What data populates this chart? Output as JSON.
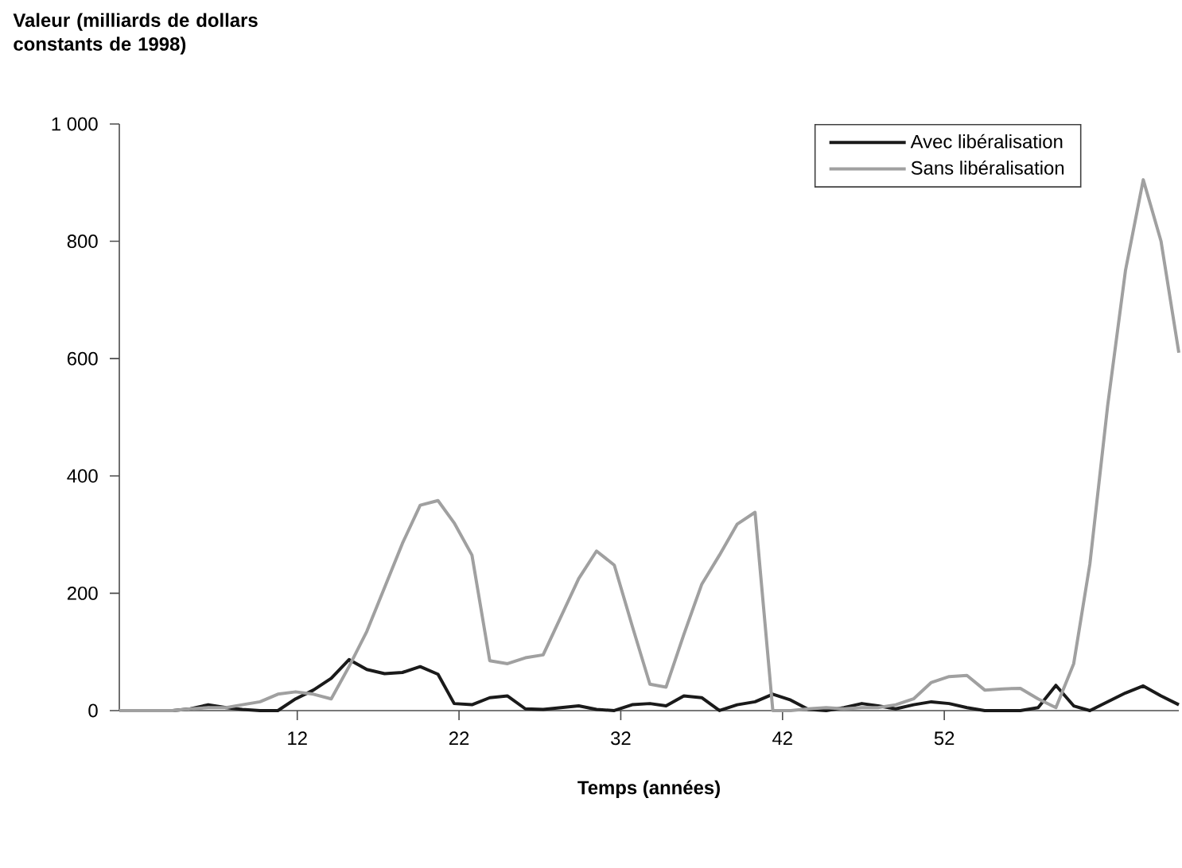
{
  "chart_data": {
    "type": "line",
    "ylabel": "Valeur (milliards de dollars constants de 1998)",
    "xlabel": "Temps (années)",
    "x": [
      1.0,
      2.1,
      3.2,
      4.3,
      5.4,
      6.5,
      7.6,
      8.6,
      9.7,
      10.8,
      11.9,
      13.0,
      14.1,
      15.2,
      16.3,
      17.4,
      18.5,
      19.6,
      20.7,
      21.7,
      22.8,
      23.9,
      25.0,
      26.1,
      27.2,
      28.3,
      29.4,
      30.5,
      31.6,
      32.7,
      33.8,
      34.8,
      35.9,
      37.0,
      38.1,
      39.2,
      40.3,
      41.4,
      42.5,
      43.6,
      44.7,
      45.8,
      46.9,
      47.9,
      49.0,
      50.1,
      51.2,
      52.3,
      53.4,
      54.5,
      55.6,
      56.7,
      57.8,
      58.9,
      60.0,
      61.0,
      62.1,
      63.2,
      64.3,
      65.4,
      66.5
    ],
    "series": [
      {
        "name": "Avec libéralisation",
        "color": "#1a1a1a",
        "values": [
          0,
          0,
          0,
          0,
          3,
          10,
          5,
          2,
          0,
          0,
          20,
          35,
          55,
          87,
          70,
          63,
          65,
          75,
          62,
          12,
          10,
          22,
          25,
          3,
          2,
          5,
          8,
          2,
          0,
          10,
          12,
          8,
          25,
          22,
          0,
          10,
          15,
          28,
          18,
          2,
          0,
          5,
          12,
          8,
          3,
          10,
          15,
          12,
          5,
          0,
          0,
          0,
          5,
          43,
          8,
          0,
          15,
          30,
          42,
          25,
          10
        ]
      },
      {
        "name": "Sans libéralisation",
        "color": "#a0a0a0",
        "values": [
          0,
          0,
          0,
          0,
          3,
          5,
          5,
          10,
          15,
          28,
          32,
          28,
          20,
          75,
          135,
          210,
          285,
          350,
          358,
          320,
          265,
          85,
          80,
          90,
          95,
          160,
          225,
          272,
          248,
          145,
          45,
          40,
          130,
          215,
          265,
          318,
          338,
          0,
          0,
          3,
          5,
          3,
          5,
          5,
          10,
          20,
          48,
          58,
          60,
          35,
          37,
          38,
          20,
          5,
          80,
          250,
          520,
          750,
          905,
          800,
          610
        ]
      }
    ],
    "xlim": [
      1,
      66.5
    ],
    "ylim": [
      0,
      1000
    ],
    "xticks": [
      12,
      22,
      32,
      42,
      52
    ],
    "yticks": [
      {
        "value": 0,
        "label": "0"
      },
      {
        "value": 200,
        "label": "200"
      },
      {
        "value": 400,
        "label": "400"
      },
      {
        "value": 600,
        "label": "600"
      },
      {
        "value": 800,
        "label": "800"
      },
      {
        "value": 1000,
        "label": "1 000"
      }
    ],
    "legend": "top right",
    "grid": false,
    "marker": "none",
    "line_style": "solid"
  }
}
